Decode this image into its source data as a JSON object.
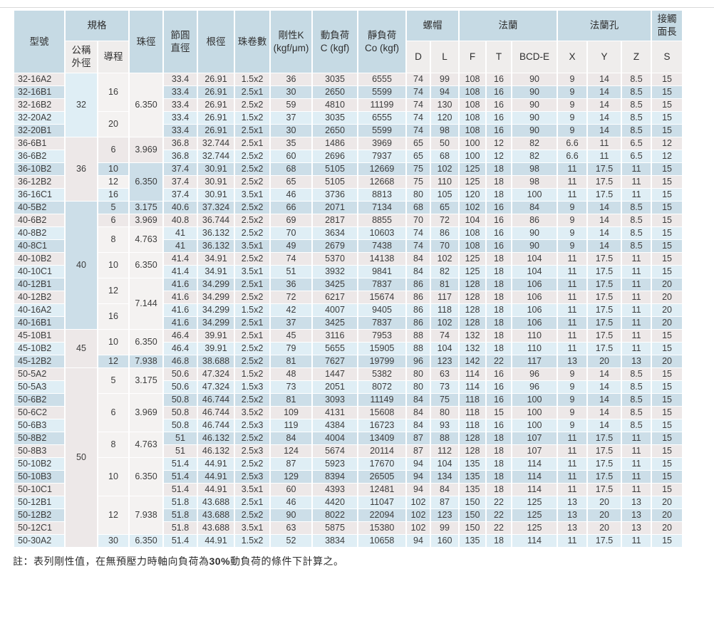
{
  "colors": {
    "header_blue": "#c6dae4",
    "subheader_gray": "#efedec",
    "row_blue": "#ccdee8",
    "row_warm": "#ede8e8",
    "row_pale": "#dfeef5",
    "cell_plain": "#f4f2f1",
    "border_white": "#ffffff",
    "text": "#3c3c3c"
  },
  "table": {
    "header": {
      "model": "型號",
      "spec": "規格",
      "spec_od": "公稱\n外徑",
      "spec_lead": "導程",
      "ball_dia": "珠徑",
      "pitch_dia": "節圓\n直徑",
      "root_dia": "根徑",
      "ball_turns": "珠卷數",
      "rigidity": "剛性K\n(kgf/μm)",
      "dynamic_load": "動負荷\nC (kgf)",
      "static_load": "靜負荷\nCo (kgf)",
      "nut": "螺帽",
      "flange": "法蘭",
      "flange_holes": "法蘭孔",
      "contact_length": "接觸\n面長",
      "sub_cols": {
        "d": "D",
        "l": "L",
        "f": "F",
        "t": "T",
        "bcd": "BCD-E",
        "x": "X",
        "y": "Y",
        "z": "Z",
        "s": "S"
      }
    },
    "rows": [
      {
        "shade": "warm",
        "cells": [
          "32-16A2",
          {
            "t": "32",
            "rs": 5,
            "s": "pale"
          },
          {
            "t": "16",
            "rs": 3,
            "s": "plain"
          },
          {
            "t": "6.350",
            "rs": 5,
            "s": "plain"
          },
          "33.4",
          "26.91",
          "1.5x2",
          "36",
          "3035",
          "6555",
          "74",
          "99",
          "108",
          "16",
          "90",
          "9",
          "14",
          "8.5",
          "15"
        ]
      },
      {
        "shade": "blue",
        "cells": [
          "32-16B1",
          "33.4",
          "26.91",
          "2.5x1",
          "30",
          "2650",
          "5599",
          "74",
          "94",
          "108",
          "16",
          "90",
          "9",
          "14",
          "8.5",
          "15"
        ]
      },
      {
        "shade": "warm",
        "cells": [
          "32-16B2",
          "33.4",
          "26.91",
          "2.5x2",
          "59",
          "4810",
          "11199",
          "74",
          "130",
          "108",
          "16",
          "90",
          "9",
          "14",
          "8.5",
          "15"
        ]
      },
      {
        "shade": "pale",
        "cells": [
          "32-20A2",
          {
            "t": "20",
            "rs": 2,
            "s": "plain"
          },
          "33.4",
          "26.91",
          "1.5x2",
          "37",
          "3035",
          "6555",
          "74",
          "120",
          "108",
          "16",
          "90",
          "9",
          "14",
          "8.5",
          "15"
        ]
      },
      {
        "shade": "blue",
        "cells": [
          "32-20B1",
          "33.4",
          "26.91",
          "2.5x1",
          "30",
          "2650",
          "5599",
          "74",
          "98",
          "108",
          "16",
          "90",
          "9",
          "14",
          "8.5",
          "15"
        ]
      },
      {
        "shade": "warm",
        "cells": [
          "36-6B1",
          {
            "t": "36",
            "rs": 5,
            "s": "warm"
          },
          {
            "t": "6",
            "rs": 2,
            "s": "warm"
          },
          {
            "t": "3.969",
            "rs": 2,
            "s": "warm"
          },
          "36.8",
          "32.744",
          "2.5x1",
          "35",
          "1486",
          "3969",
          "65",
          "50",
          "100",
          "12",
          "82",
          "6.6",
          "11",
          "6.5",
          "12"
        ]
      },
      {
        "shade": "pale",
        "cells": [
          "36-6B2",
          "36.8",
          "32.744",
          "2.5x2",
          "60",
          "2696",
          "7937",
          "65",
          "68",
          "100",
          "12",
          "82",
          "6.6",
          "11",
          "6.5",
          "12"
        ]
      },
      {
        "shade": "blue",
        "cells": [
          "36-10B2",
          {
            "t": "10",
            "s": "blue"
          },
          {
            "t": "6.350",
            "rs": 3,
            "s": "blue"
          },
          "37.4",
          "30.91",
          "2.5x2",
          "68",
          "5105",
          "12669",
          "75",
          "102",
          "125",
          "18",
          "98",
          "11",
          "17.5",
          "11",
          "15"
        ]
      },
      {
        "shade": "warm",
        "cells": [
          "36-12B2",
          {
            "t": "12",
            "s": "plain"
          },
          "37.4",
          "30.91",
          "2.5x2",
          "65",
          "5105",
          "12668",
          "75",
          "110",
          "125",
          "18",
          "98",
          "11",
          "17.5",
          "11",
          "15"
        ]
      },
      {
        "shade": "pale",
        "cells": [
          "36-16C1",
          {
            "t": "16",
            "s": "pale"
          },
          "37.4",
          "30.91",
          "3.5x1",
          "46",
          "3736",
          "8813",
          "80",
          "105",
          "120",
          "18",
          "100",
          "11",
          "17.5",
          "11",
          "15"
        ]
      },
      {
        "shade": "blue",
        "cells": [
          "40-5B2",
          {
            "t": "40",
            "rs": 10,
            "s": "blue"
          },
          {
            "t": "5",
            "s": "blue"
          },
          {
            "t": "3.175",
            "s": "blue"
          },
          "40.6",
          "37.324",
          "2.5x2",
          "66",
          "2071",
          "7134",
          "68",
          "65",
          "102",
          "16",
          "84",
          "9",
          "14",
          "8.5",
          "15"
        ]
      },
      {
        "shade": "warm",
        "cells": [
          "40-6B2",
          {
            "t": "6",
            "s": "warm"
          },
          {
            "t": "3.969",
            "s": "warm"
          },
          "40.8",
          "36.744",
          "2.5x2",
          "69",
          "2817",
          "8855",
          "70",
          "72",
          "104",
          "16",
          "86",
          "9",
          "14",
          "8.5",
          "15"
        ]
      },
      {
        "shade": "pale",
        "cells": [
          "40-8B2",
          {
            "t": "8",
            "rs": 2,
            "s": "plain"
          },
          {
            "t": "4.763",
            "rs": 2,
            "s": "plain"
          },
          "41",
          "36.132",
          "2.5x2",
          "70",
          "3634",
          "10603",
          "74",
          "86",
          "108",
          "16",
          "90",
          "9",
          "14",
          "8.5",
          "15"
        ]
      },
      {
        "shade": "blue",
        "cells": [
          "40-8C1",
          "41",
          "36.132",
          "3.5x1",
          "49",
          "2679",
          "7438",
          "74",
          "70",
          "108",
          "16",
          "90",
          "9",
          "14",
          "8.5",
          "15"
        ]
      },
      {
        "shade": "warm",
        "cells": [
          "40-10B2",
          {
            "t": "10",
            "rs": 2,
            "s": "plain"
          },
          {
            "t": "6.350",
            "rs": 2,
            "s": "plain"
          },
          "41.4",
          "34.91",
          "2.5x2",
          "74",
          "5370",
          "14138",
          "84",
          "102",
          "125",
          "18",
          "104",
          "11",
          "17.5",
          "11",
          "15"
        ]
      },
      {
        "shade": "pale",
        "cells": [
          "40-10C1",
          "41.4",
          "34.91",
          "3.5x1",
          "51",
          "3932",
          "9841",
          "84",
          "82",
          "125",
          "18",
          "104",
          "11",
          "17.5",
          "11",
          "15"
        ]
      },
      {
        "shade": "blue",
        "cells": [
          "40-12B1",
          {
            "t": "12",
            "rs": 2,
            "s": "plain"
          },
          {
            "t": "7.144",
            "rs": 4,
            "s": "plain"
          },
          "41.6",
          "34.299",
          "2.5x1",
          "36",
          "3425",
          "7837",
          "86",
          "81",
          "128",
          "18",
          "106",
          "11",
          "17.5",
          "11",
          "20"
        ]
      },
      {
        "shade": "warm",
        "cells": [
          "40-12B2",
          "41.6",
          "34.299",
          "2.5x2",
          "72",
          "6217",
          "15674",
          "86",
          "117",
          "128",
          "18",
          "106",
          "11",
          "17.5",
          "11",
          "20"
        ]
      },
      {
        "shade": "pale",
        "cells": [
          "40-16A2",
          {
            "t": "16",
            "rs": 2,
            "s": "plain"
          },
          "41.6",
          "34.299",
          "1.5x2",
          "42",
          "4007",
          "9405",
          "86",
          "118",
          "128",
          "18",
          "106",
          "11",
          "17.5",
          "11",
          "20"
        ]
      },
      {
        "shade": "blue",
        "cells": [
          "40-16B1",
          "41.6",
          "34.299",
          "2.5x1",
          "37",
          "3425",
          "7837",
          "86",
          "102",
          "128",
          "18",
          "106",
          "11",
          "17.5",
          "11",
          "20"
        ]
      },
      {
        "shade": "warm",
        "cells": [
          "45-10B1",
          {
            "t": "45",
            "rs": 3,
            "s": "warm"
          },
          {
            "t": "10",
            "rs": 2,
            "s": "plain"
          },
          {
            "t": "6.350",
            "rs": 2,
            "s": "plain"
          },
          "46.4",
          "39.91",
          "2.5x1",
          "45",
          "3116",
          "7953",
          "88",
          "74",
          "132",
          "18",
          "110",
          "11",
          "17.5",
          "11",
          "15"
        ]
      },
      {
        "shade": "pale",
        "cells": [
          "45-10B2",
          "46.4",
          "39.91",
          "2.5x2",
          "79",
          "5655",
          "15905",
          "88",
          "104",
          "132",
          "18",
          "110",
          "11",
          "17.5",
          "11",
          "15"
        ]
      },
      {
        "shade": "blue",
        "cells": [
          "45-12B2",
          {
            "t": "12",
            "s": "blue"
          },
          {
            "t": "7.938",
            "s": "blue"
          },
          "46.8",
          "38.688",
          "2.5x2",
          "81",
          "7627",
          "19799",
          "96",
          "123",
          "142",
          "22",
          "117",
          "13",
          "20",
          "13",
          "20"
        ]
      },
      {
        "shade": "warm",
        "cells": [
          "50-5A2",
          {
            "t": "50",
            "rs": 14,
            "s": "warm"
          },
          {
            "t": "5",
            "rs": 2,
            "s": "plain"
          },
          {
            "t": "3.175",
            "rs": 2,
            "s": "plain"
          },
          "50.6",
          "47.324",
          "1.5x2",
          "48",
          "1447",
          "5382",
          "80",
          "63",
          "114",
          "16",
          "96",
          "9",
          "14",
          "8.5",
          "15"
        ]
      },
      {
        "shade": "pale",
        "cells": [
          "50-5A3",
          "50.6",
          "47.324",
          "1.5x3",
          "73",
          "2051",
          "8072",
          "80",
          "73",
          "114",
          "16",
          "96",
          "9",
          "14",
          "8.5",
          "15"
        ]
      },
      {
        "shade": "blue",
        "cells": [
          "50-6B2",
          {
            "t": "6",
            "rs": 3,
            "s": "plain"
          },
          {
            "t": "3.969",
            "rs": 3,
            "s": "plain"
          },
          "50.8",
          "46.744",
          "2.5x2",
          "81",
          "3093",
          "11149",
          "84",
          "75",
          "118",
          "16",
          "100",
          "9",
          "14",
          "8.5",
          "15"
        ]
      },
      {
        "shade": "warm",
        "cells": [
          "50-6C2",
          "50.8",
          "46.744",
          "3.5x2",
          "109",
          "4131",
          "15608",
          "84",
          "80",
          "118",
          "15",
          "100",
          "9",
          "14",
          "8.5",
          "15"
        ]
      },
      {
        "shade": "pale",
        "cells": [
          "50-6B3",
          "50.8",
          "46.744",
          "2.5x3",
          "119",
          "4384",
          "16723",
          "84",
          "93",
          "118",
          "16",
          "100",
          "9",
          "14",
          "8.5",
          "15"
        ]
      },
      {
        "shade": "blue",
        "cells": [
          "50-8B2",
          {
            "t": "8",
            "rs": 2,
            "s": "plain"
          },
          {
            "t": "4.763",
            "rs": 2,
            "s": "plain"
          },
          "51",
          "46.132",
          "2.5x2",
          "84",
          "4004",
          "13409",
          "87",
          "88",
          "128",
          "18",
          "107",
          "11",
          "17.5",
          "11",
          "15"
        ]
      },
      {
        "shade": "warm",
        "cells": [
          "50-8B3",
          "51",
          "46.132",
          "2.5x3",
          "124",
          "5674",
          "20114",
          "87",
          "112",
          "128",
          "18",
          "107",
          "11",
          "17.5",
          "11",
          "15"
        ]
      },
      {
        "shade": "pale",
        "cells": [
          "50-10B2",
          {
            "t": "10",
            "rs": 3,
            "s": "plain"
          },
          {
            "t": "6.350",
            "rs": 3,
            "s": "plain"
          },
          "51.4",
          "44.91",
          "2.5x2",
          "87",
          "5923",
          "17670",
          "94",
          "104",
          "135",
          "18",
          "114",
          "11",
          "17.5",
          "11",
          "15"
        ]
      },
      {
        "shade": "blue",
        "cells": [
          "50-10B3",
          "51.4",
          "44.91",
          "2.5x3",
          "129",
          "8394",
          "26505",
          "94",
          "134",
          "135",
          "18",
          "114",
          "11",
          "17.5",
          "11",
          "15"
        ]
      },
      {
        "shade": "warm",
        "cells": [
          "50-10C1",
          "51.4",
          "44.91",
          "3.5x1",
          "60",
          "4393",
          "12481",
          "94",
          "84",
          "135",
          "18",
          "114",
          "11",
          "17.5",
          "11",
          "15"
        ]
      },
      {
        "shade": "pale",
        "cells": [
          "50-12B1",
          {
            "t": "12",
            "rs": 3,
            "s": "plain"
          },
          {
            "t": "7.938",
            "rs": 3,
            "s": "plain"
          },
          "51.8",
          "43.688",
          "2.5x1",
          "46",
          "4420",
          "11047",
          "102",
          "87",
          "150",
          "22",
          "125",
          "13",
          "20",
          "13",
          "20"
        ]
      },
      {
        "shade": "blue",
        "cells": [
          "50-12B2",
          "51.8",
          "43.688",
          "2.5x2",
          "90",
          "8022",
          "22094",
          "102",
          "123",
          "150",
          "22",
          "125",
          "13",
          "20",
          "13",
          "20"
        ]
      },
      {
        "shade": "warm",
        "cells": [
          "50-12C1",
          "51.8",
          "43.688",
          "3.5x1",
          "63",
          "5875",
          "15380",
          "102",
          "99",
          "150",
          "22",
          "125",
          "13",
          "20",
          "13",
          "20"
        ]
      },
      {
        "shade": "pale",
        "cells": [
          "50-30A2",
          {
            "t": "30",
            "s": "pale"
          },
          {
            "t": "6.350",
            "s": "pale"
          },
          "51.4",
          "44.91",
          "1.5x2",
          "52",
          "3834",
          "10658",
          "94",
          "160",
          "135",
          "18",
          "114",
          "11",
          "17.5",
          "11",
          "15"
        ]
      }
    ]
  },
  "note": {
    "prefix": "註：表列剛性值，在無預壓力時軸向負荷為",
    "highlight": "30%",
    "suffix": "動負荷的條件下計算之。"
  }
}
